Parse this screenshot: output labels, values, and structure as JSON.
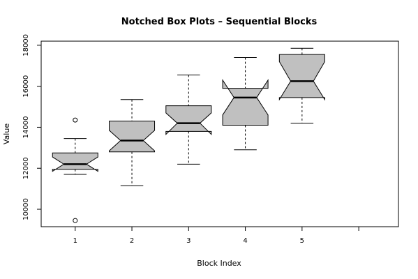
{
  "chart_data": {
    "type": "box",
    "title": "Notched Box Plots – Sequential Blocks",
    "xlabel": "Block Index",
    "ylabel": "Value",
    "xlim": [
      0.4,
      6.7
    ],
    "ylim": [
      9150,
      18200
    ],
    "notched": true,
    "box_color": "#c0c0c0",
    "x_ticks": [
      1,
      2,
      3,
      4,
      5,
      6
    ],
    "x_tick_labels": [
      "1",
      "2",
      "3",
      "4",
      "5",
      ""
    ],
    "y_ticks": [
      10000,
      12000,
      14000,
      16000,
      18000
    ],
    "y_tick_labels": [
      "10000",
      "12000",
      "14000",
      "16000",
      "18000"
    ],
    "boxes": [
      {
        "x": 1,
        "whisker_low": 11700,
        "q1": 11950,
        "median": 12200,
        "q3": 12750,
        "whisker_high": 13450,
        "notch_low": 11850,
        "notch_high": 12550,
        "outliers": [
          14350,
          9450
        ]
      },
      {
        "x": 2,
        "whisker_low": 11150,
        "q1": 12800,
        "median": 13350,
        "q3": 14300,
        "whisker_high": 15350,
        "notch_low": 12850,
        "notch_high": 13850,
        "outliers": []
      },
      {
        "x": 3,
        "whisker_low": 12200,
        "q1": 13800,
        "median": 14200,
        "q3": 15050,
        "whisker_high": 16550,
        "notch_low": 13650,
        "notch_high": 14700,
        "outliers": []
      },
      {
        "x": 4,
        "whisker_low": 12900,
        "q1": 14100,
        "median": 15450,
        "q3": 15900,
        "whisker_high": 17400,
        "notch_low": 14600,
        "notch_high": 16300,
        "outliers": []
      },
      {
        "x": 5,
        "whisker_low": 14200,
        "q1": 15450,
        "median": 16250,
        "q3": 17550,
        "whisker_high": 17850,
        "notch_low": 15350,
        "notch_high": 17200,
        "outliers": []
      }
    ]
  }
}
